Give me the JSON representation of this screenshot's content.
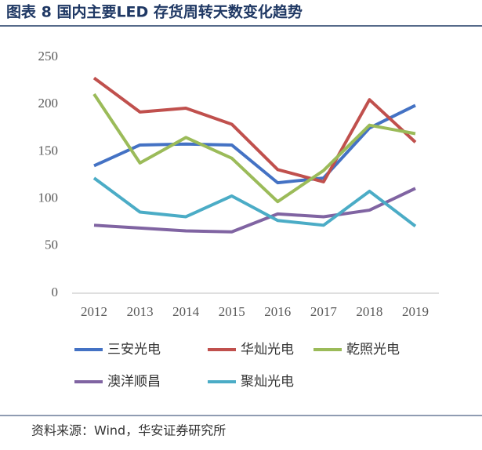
{
  "title": "图表 8 国内主要LED 存货周转天数变化趋势",
  "source": "资料来源：Wind，华安证券研究所",
  "chart_data": {
    "type": "line",
    "categories": [
      "2012",
      "2013",
      "2014",
      "2015",
      "2016",
      "2017",
      "2018",
      "2019"
    ],
    "ylim": [
      0,
      250
    ],
    "yticks": [
      0,
      50,
      100,
      150,
      200,
      250
    ],
    "grid": false,
    "series": [
      {
        "name": "三安光电",
        "color": "#4472c4",
        "values": [
          135,
          157,
          158,
          157,
          117,
          122,
          175,
          199
        ]
      },
      {
        "name": "华灿光电",
        "color": "#c0504d",
        "values": [
          228,
          192,
          196,
          179,
          131,
          118,
          205,
          160
        ]
      },
      {
        "name": "乾照光电",
        "color": "#9bbb59",
        "values": [
          211,
          138,
          165,
          143,
          97,
          130,
          178,
          169
        ]
      },
      {
        "name": "澳洋顺昌",
        "color": "#8064a2",
        "values": [
          72,
          69,
          66,
          65,
          84,
          81,
          88,
          111
        ]
      },
      {
        "name": "聚灿光电",
        "color": "#4bacc6",
        "values": [
          122,
          86,
          81,
          103,
          77,
          72,
          108,
          71
        ]
      }
    ]
  }
}
